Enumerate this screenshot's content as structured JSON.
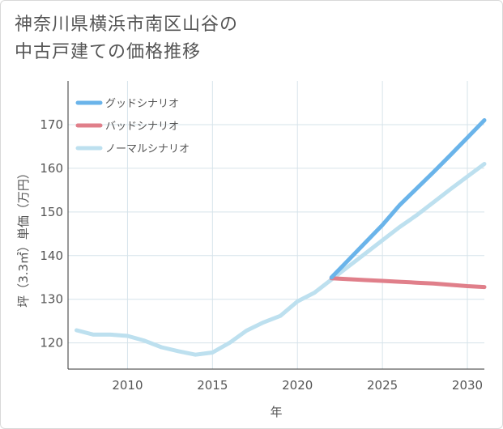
{
  "chart_data": {
    "type": "line",
    "title_line1": "神奈川県横浜市南区山谷の",
    "title_line2": "中古戸建ての価格推移",
    "xlabel": "年",
    "ylabel": "坪（3.3㎡）単価（万円）",
    "xlim": [
      2006.5,
      2031
    ],
    "ylim": [
      114,
      180
    ],
    "xticks": [
      2010,
      2015,
      2020,
      2025,
      2030
    ],
    "yticks": [
      120,
      130,
      140,
      150,
      160,
      170
    ],
    "colors": {
      "good": "#6ab4ea",
      "bad": "#e07f8a",
      "normal": "#bde0ef",
      "grid": "#d6e3ea",
      "axis": "#333333"
    },
    "series": [
      {
        "key": "good",
        "name": "グッドシナリオ",
        "x": [
          2022,
          2023,
          2024,
          2025,
          2026,
          2027,
          2028,
          2029,
          2030,
          2031
        ],
        "values": [
          135.0,
          139.0,
          143.0,
          147.0,
          151.5,
          155.3,
          159.1,
          163.0,
          167.0,
          171.0
        ]
      },
      {
        "key": "bad",
        "name": "バッドシナリオ",
        "x": [
          2022,
          2023,
          2024,
          2025,
          2026,
          2027,
          2028,
          2029,
          2030,
          2031
        ],
        "values": [
          134.8,
          134.6,
          134.4,
          134.2,
          134.0,
          133.8,
          133.6,
          133.3,
          133.0,
          132.8
        ]
      },
      {
        "key": "normal",
        "name": "ノーマルシナリオ",
        "x": [
          2007,
          2008,
          2009,
          2010,
          2011,
          2012,
          2013,
          2014,
          2015,
          2016,
          2017,
          2018,
          2019,
          2020,
          2021,
          2022,
          2023,
          2024,
          2025,
          2026,
          2027,
          2028,
          2029,
          2030,
          2031
        ],
        "values": [
          122.9,
          121.9,
          121.9,
          121.6,
          120.5,
          119.0,
          118.1,
          117.3,
          117.8,
          120.0,
          122.8,
          124.7,
          126.2,
          129.5,
          131.5,
          134.5,
          137.5,
          140.5,
          143.5,
          146.5,
          149.2,
          152.2,
          155.2,
          158.1,
          161.0
        ]
      }
    ],
    "legend_position": "top-left"
  }
}
